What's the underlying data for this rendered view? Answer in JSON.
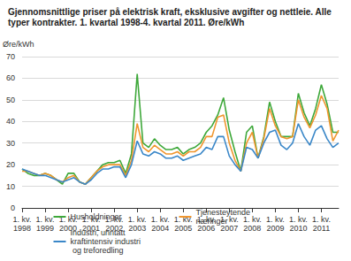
{
  "chart_data": {
    "type": "line",
    "title": "Gjennomsnittlige priser på elektrisk kraft, eksklusive avgifter og nettleie. Alle typer kontrakter. 1. kvartal 1998-4. kvartal 2011. Øre/kWh",
    "y_label": "Øre/kWh",
    "categories": [
      "1. kv. 1998",
      null,
      null,
      null,
      "1. kv. 1999",
      null,
      null,
      null,
      "1. kv. 2000",
      null,
      null,
      null,
      "1. kv. 2001",
      null,
      null,
      null,
      "1. kv. 2002",
      null,
      null,
      null,
      "1. kv. 2003",
      null,
      null,
      null,
      "1. kv. 2004",
      null,
      null,
      null,
      "1. kv. 2005",
      null,
      null,
      null,
      "1. kv. 2006",
      null,
      null,
      null,
      "1. kv. 2007",
      null,
      null,
      null,
      "1. kv. 2008",
      null,
      null,
      null,
      "1. kv. 2009",
      null,
      null,
      null,
      "1. kv. 2010",
      null,
      null,
      null,
      "1. kv. 2011",
      null,
      null,
      null
    ],
    "series": [
      {
        "name": "Husholdninger",
        "color": "#3ea83a",
        "values": [
          18,
          16,
          15,
          15,
          16,
          15,
          13,
          11,
          16,
          16,
          12,
          11,
          14,
          17,
          20,
          21,
          21,
          22,
          16,
          25,
          62,
          30,
          28,
          32,
          29,
          27,
          27,
          28,
          25,
          27,
          28,
          30,
          35,
          38,
          43,
          51,
          36,
          26,
          17,
          35,
          38,
          23,
          33,
          49,
          40,
          33,
          33,
          33,
          53,
          44,
          38,
          46,
          57,
          48,
          35,
          35
        ]
      },
      {
        "name": "Tjenesteytende næringer",
        "color": "#f0962e",
        "values": [
          17,
          17,
          16,
          15,
          16,
          15,
          13,
          12,
          14,
          15,
          12,
          11,
          14,
          17,
          19,
          20,
          20,
          20,
          15,
          22,
          39,
          28,
          26,
          29,
          27,
          25,
          25,
          26,
          24,
          26,
          26,
          28,
          33,
          33,
          42,
          43,
          30,
          22,
          17,
          30,
          35,
          23,
          32,
          46,
          38,
          33,
          32,
          33,
          50,
          42,
          37,
          43,
          52,
          46,
          31,
          36
        ]
      },
      {
        "name": "Industri, unntatt kraftintensiv industri og treforedling",
        "color": "#3a87c8",
        "values": [
          18,
          17,
          16,
          15,
          15,
          14,
          13,
          12,
          13,
          14,
          12,
          11,
          13,
          16,
          18,
          18,
          19,
          19,
          14,
          20,
          31,
          25,
          24,
          26,
          25,
          23,
          23,
          24,
          22,
          23,
          24,
          25,
          28,
          27,
          33,
          33,
          24,
          20,
          17,
          28,
          27,
          23,
          30,
          35,
          36,
          29,
          27,
          30,
          39,
          33,
          29,
          36,
          38,
          32,
          28,
          30
        ]
      }
    ],
    "ylim": [
      0,
      70
    ],
    "yticks": [
      0,
      10,
      20,
      30,
      40,
      50,
      60,
      70
    ],
    "grid": true,
    "legend": "bottom"
  }
}
